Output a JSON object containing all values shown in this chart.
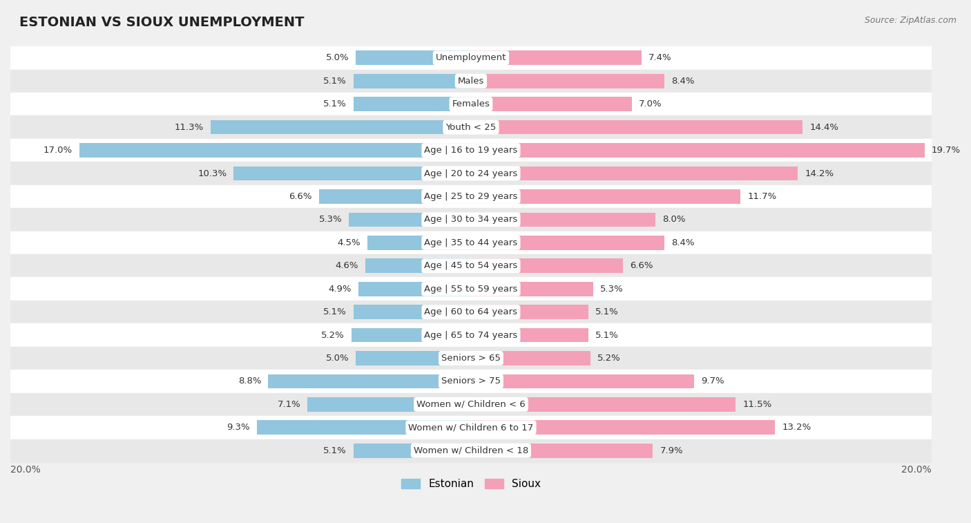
{
  "title": "ESTONIAN VS SIOUX UNEMPLOYMENT",
  "source": "Source: ZipAtlas.com",
  "categories": [
    "Unemployment",
    "Males",
    "Females",
    "Youth < 25",
    "Age | 16 to 19 years",
    "Age | 20 to 24 years",
    "Age | 25 to 29 years",
    "Age | 30 to 34 years",
    "Age | 35 to 44 years",
    "Age | 45 to 54 years",
    "Age | 55 to 59 years",
    "Age | 60 to 64 years",
    "Age | 65 to 74 years",
    "Seniors > 65",
    "Seniors > 75",
    "Women w/ Children < 6",
    "Women w/ Children 6 to 17",
    "Women w/ Children < 18"
  ],
  "estonian": [
    5.0,
    5.1,
    5.1,
    11.3,
    17.0,
    10.3,
    6.6,
    5.3,
    4.5,
    4.6,
    4.9,
    5.1,
    5.2,
    5.0,
    8.8,
    7.1,
    9.3,
    5.1
  ],
  "sioux": [
    7.4,
    8.4,
    7.0,
    14.4,
    19.7,
    14.2,
    11.7,
    8.0,
    8.4,
    6.6,
    5.3,
    5.1,
    5.1,
    5.2,
    9.7,
    11.5,
    13.2,
    7.9
  ],
  "estonian_color": "#92c5de",
  "sioux_color": "#f4a0b8",
  "bg_color": "#f0f0f0",
  "row_bg_even": "#ffffff",
  "row_bg_odd": "#e8e8e8",
  "max_val": 20.0,
  "legend_estonian": "Estonian",
  "legend_sioux": "Sioux",
  "title_fontsize": 14,
  "label_fontsize": 9.5,
  "value_fontsize": 9.5
}
